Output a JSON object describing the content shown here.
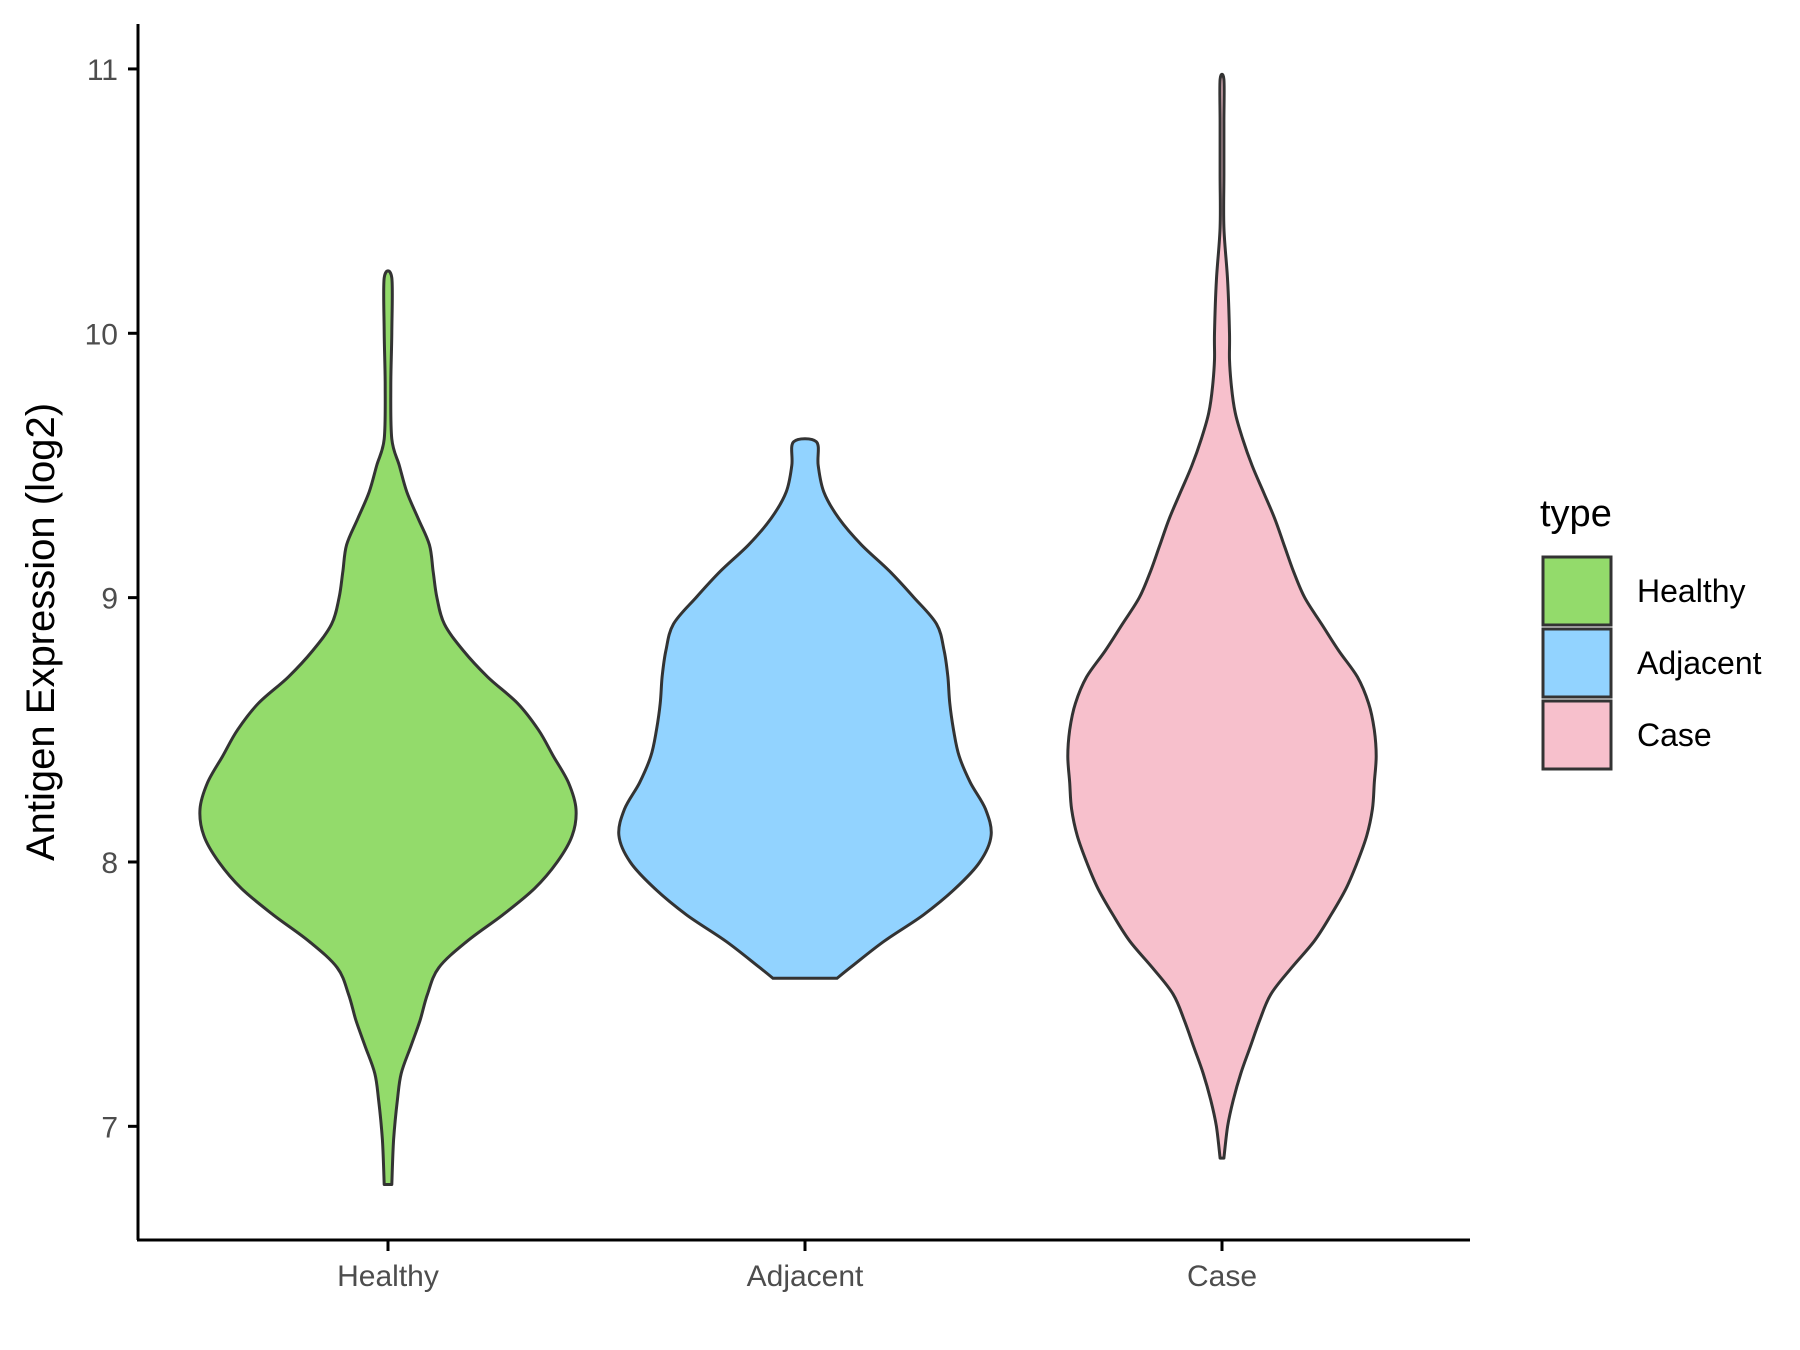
{
  "chart_data": {
    "type": "violin",
    "ylabel": "Antigen Expression (log2)",
    "xlabel": "",
    "title": "",
    "ylim": [
      6.57,
      11.17
    ],
    "yticks": [
      7,
      8,
      9,
      10,
      11
    ],
    "categories": [
      "Healthy",
      "Adjacent",
      "Case"
    ],
    "legend": {
      "title": "type",
      "position": "right"
    },
    "grid": false,
    "series": [
      {
        "name": "Healthy",
        "color": "#93DB6B",
        "profile": [
          [
            6.78,
            0.02
          ],
          [
            6.95,
            0.03
          ],
          [
            7.1,
            0.05
          ],
          [
            7.2,
            0.07
          ],
          [
            7.3,
            0.12
          ],
          [
            7.4,
            0.17
          ],
          [
            7.5,
            0.21
          ],
          [
            7.6,
            0.27
          ],
          [
            7.7,
            0.42
          ],
          [
            7.8,
            0.61
          ],
          [
            7.9,
            0.78
          ],
          [
            8.0,
            0.9
          ],
          [
            8.1,
            0.98
          ],
          [
            8.2,
            1.0
          ],
          [
            8.3,
            0.96
          ],
          [
            8.4,
            0.88
          ],
          [
            8.5,
            0.8
          ],
          [
            8.6,
            0.69
          ],
          [
            8.7,
            0.53
          ],
          [
            8.8,
            0.4
          ],
          [
            8.9,
            0.3
          ],
          [
            9.0,
            0.26
          ],
          [
            9.1,
            0.24
          ],
          [
            9.2,
            0.22
          ],
          [
            9.3,
            0.16
          ],
          [
            9.4,
            0.1
          ],
          [
            9.5,
            0.06
          ],
          [
            9.6,
            0.02
          ],
          [
            9.8,
            0.015
          ],
          [
            10.0,
            0.02
          ],
          [
            10.21,
            0.02
          ]
        ]
      },
      {
        "name": "Adjacent",
        "color": "#92D3FF",
        "profile": [
          [
            7.56,
            0.17
          ],
          [
            7.6,
            0.24
          ],
          [
            7.7,
            0.42
          ],
          [
            7.8,
            0.63
          ],
          [
            7.9,
            0.8
          ],
          [
            8.0,
            0.93
          ],
          [
            8.1,
            0.99
          ],
          [
            8.2,
            0.96
          ],
          [
            8.3,
            0.88
          ],
          [
            8.4,
            0.82
          ],
          [
            8.5,
            0.79
          ],
          [
            8.6,
            0.77
          ],
          [
            8.7,
            0.76
          ],
          [
            8.8,
            0.74
          ],
          [
            8.9,
            0.7
          ],
          [
            9.0,
            0.58
          ],
          [
            9.1,
            0.45
          ],
          [
            9.2,
            0.3
          ],
          [
            9.3,
            0.18
          ],
          [
            9.4,
            0.1
          ],
          [
            9.5,
            0.07
          ],
          [
            9.59,
            0.06
          ]
        ]
      },
      {
        "name": "Case",
        "color": "#F7C0CC",
        "profile": [
          [
            6.88,
            0.01
          ],
          [
            7.0,
            0.03
          ],
          [
            7.1,
            0.06
          ],
          [
            7.2,
            0.1
          ],
          [
            7.3,
            0.15
          ],
          [
            7.4,
            0.2
          ],
          [
            7.5,
            0.26
          ],
          [
            7.6,
            0.37
          ],
          [
            7.7,
            0.49
          ],
          [
            7.8,
            0.58
          ],
          [
            7.9,
            0.66
          ],
          [
            8.0,
            0.72
          ],
          [
            8.1,
            0.77
          ],
          [
            8.2,
            0.8
          ],
          [
            8.3,
            0.81
          ],
          [
            8.4,
            0.82
          ],
          [
            8.5,
            0.81
          ],
          [
            8.6,
            0.78
          ],
          [
            8.7,
            0.72
          ],
          [
            8.8,
            0.62
          ],
          [
            8.9,
            0.53
          ],
          [
            9.0,
            0.44
          ],
          [
            9.1,
            0.38
          ],
          [
            9.2,
            0.33
          ],
          [
            9.3,
            0.28
          ],
          [
            9.4,
            0.22
          ],
          [
            9.5,
            0.16
          ],
          [
            9.6,
            0.11
          ],
          [
            9.7,
            0.07
          ],
          [
            9.8,
            0.05
          ],
          [
            9.9,
            0.04
          ],
          [
            10.0,
            0.04
          ],
          [
            10.2,
            0.03
          ],
          [
            10.4,
            0.01
          ],
          [
            10.6,
            0.01
          ],
          [
            10.8,
            0.01
          ],
          [
            10.96,
            0.01
          ]
        ]
      }
    ]
  }
}
